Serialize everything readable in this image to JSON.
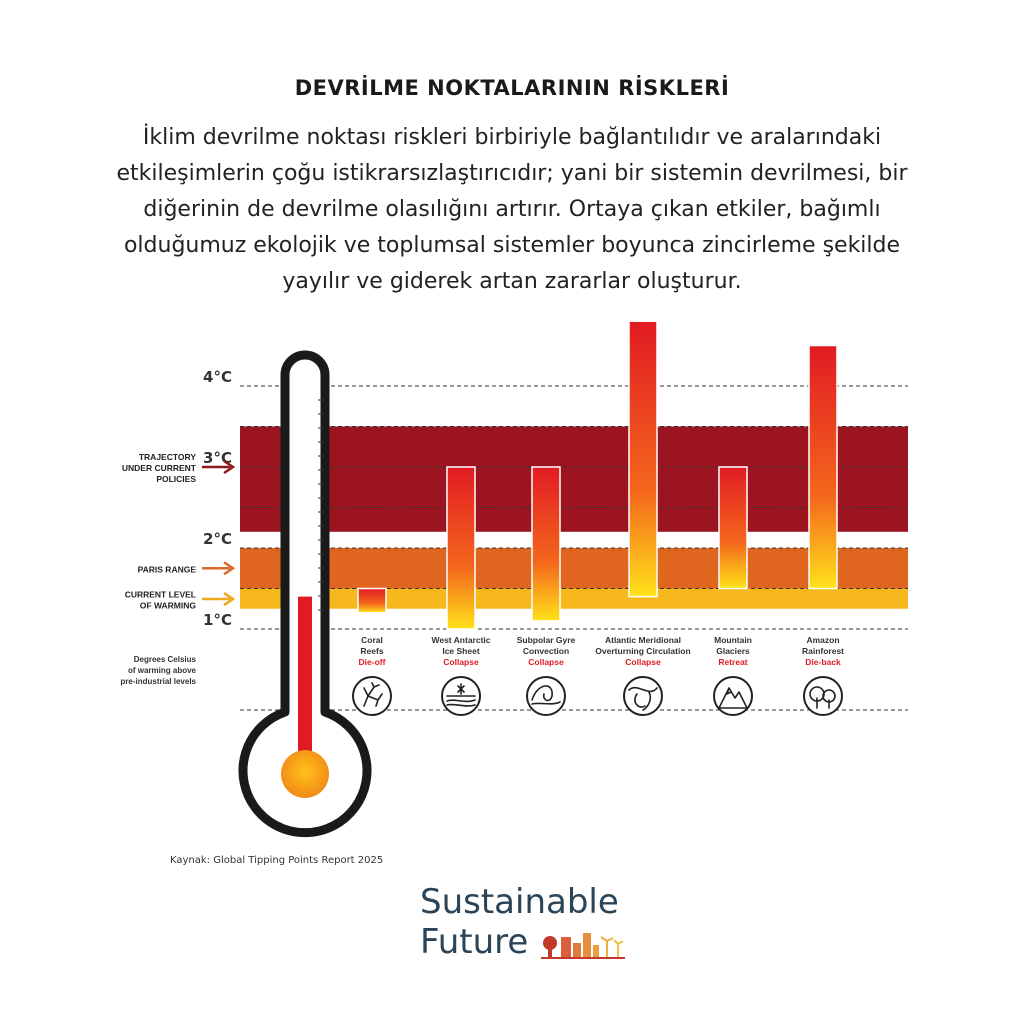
{
  "title": "DEVRİLME NOKTALARININ RİSKLERİ",
  "intro_lines": [
    "İklim devrilme noktası riskleri birbiriyle bağlantılıdır ve aralarındaki",
    "etkileşimlerin çoğu istikrarsızlaştırıcıdır; yani bir sistemin devrilmesi, bir",
    "diğerinin de devrilme olasılığını artırır. Ortaya çıkan etkiler, bağımlı",
    "olduğumuz ekolojik ve toplumsal sistemler boyunca zincirleme şekilde",
    "yayılır ve giderek artan zararlar oluşturur."
  ],
  "source": "Kaynak: Global Tipping Points Report 2025",
  "logo": {
    "line1": "Sustainable",
    "line2": "Future"
  },
  "colors": {
    "trajectory_band": "#9b1420",
    "paris_band": "#e0651f",
    "current_band": "#f6b81c",
    "bar_top": "#e11b23",
    "bar_bottom": "#ffe21a",
    "thermometer": "#1a1a1a",
    "dark_red_text": "#8c1a1a"
  },
  "chart_data": {
    "type": "bar",
    "ylabel": "Degrees Celsius of warming above pre-industrial levels",
    "ylabel_lines": [
      "Degrees Celsius",
      "of warming above",
      "pre-industrial levels"
    ],
    "ylim": [
      1.0,
      4.2
    ],
    "yticks": [
      {
        "value": 1,
        "label": "1°C"
      },
      {
        "value": 2,
        "label": "2°C"
      },
      {
        "value": 3,
        "label": "3°C"
      },
      {
        "value": 4,
        "label": "4°C"
      }
    ],
    "bands": [
      {
        "name": "trajectory",
        "from": 2.2,
        "to": 3.5,
        "label_lines": [
          "TRAJECTORY",
          "UNDER CURRENT",
          "POLICIES"
        ]
      },
      {
        "name": "paris",
        "from": 1.5,
        "to": 2.0,
        "label_lines": [
          "PARIS RANGE"
        ]
      },
      {
        "name": "current",
        "from": 1.25,
        "to": 1.5,
        "label_lines": [
          "CURRENT LEVEL",
          "OF WARMING"
        ]
      }
    ],
    "current_warming": 1.4,
    "categories": [
      {
        "name_lines": [
          "Coral",
          "Reefs"
        ],
        "impact": "Die-off",
        "icon": "coral-icon",
        "low": 1.2,
        "high": 1.5
      },
      {
        "name_lines": [
          "West Antarctic",
          "Ice Sheet"
        ],
        "impact": "Collapse",
        "icon": "ice-sheet-icon",
        "low": 1.0,
        "high": 3.0
      },
      {
        "name_lines": [
          "Subpolar Gyre",
          "Convection"
        ],
        "impact": "Collapse",
        "icon": "wave-icon",
        "low": 1.1,
        "high": 3.0
      },
      {
        "name_lines": [
          "Atlantic Meridional",
          "Overturning Circulation"
        ],
        "impact": "Collapse",
        "icon": "ocean-current-icon",
        "low": 1.4,
        "high": 4.8
      },
      {
        "name_lines": [
          "Mountain",
          "Glaciers"
        ],
        "impact": "Retreat",
        "icon": "mountain-icon",
        "low": 1.5,
        "high": 3.0
      },
      {
        "name_lines": [
          "Amazon",
          "Rainforest"
        ],
        "impact": "Die-back",
        "icon": "tree-icon",
        "low": 1.5,
        "high": 4.5
      }
    ]
  }
}
